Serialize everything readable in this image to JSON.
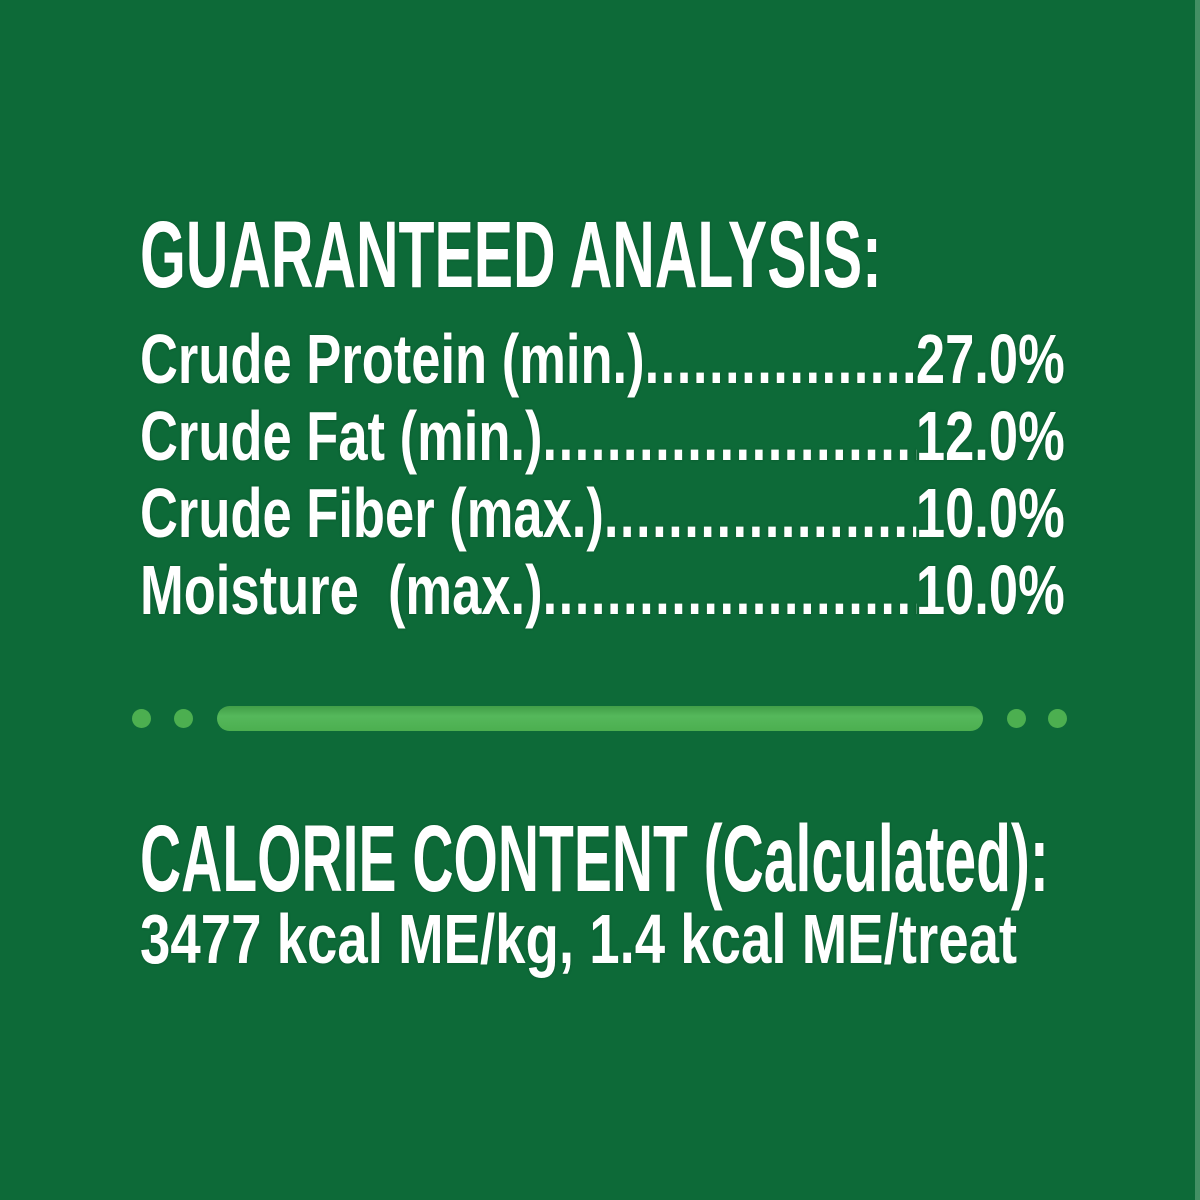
{
  "colors": {
    "background_green": "#0d6a38",
    "divider_green": "#4caf50",
    "text_white": "#ffffff"
  },
  "ui": {
    "leader_dots": "................................................................................"
  },
  "guaranteed_analysis": {
    "title": "GUARANTEED ANALYSIS:",
    "rows": [
      {
        "label": "Crude Protein (min.)",
        "value": "27.0%"
      },
      {
        "label": "Crude Fat (min.)",
        "value": "12.0%"
      },
      {
        "label": "Crude Fiber (max.)",
        "value": "10.0%"
      },
      {
        "label": "Moisture  (max.)",
        "value": "10.0%"
      }
    ]
  },
  "calorie_content": {
    "title": "CALORIE CONTENT (Calculated):",
    "value_line": "3477 kcal ME/kg, 1.4 kcal ME/treat"
  }
}
